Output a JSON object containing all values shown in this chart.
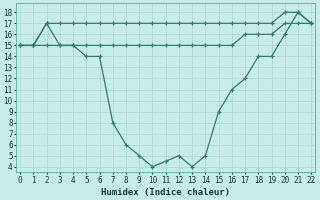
{
  "xlabel": "Humidex (Indice chaleur)",
  "background_color": "#c8ece8",
  "grid_color": "#afd4cf",
  "line_color": "#2e7d6e",
  "x_ticks": [
    0,
    1,
    2,
    3,
    4,
    5,
    6,
    7,
    8,
    9,
    10,
    11,
    12,
    13,
    14,
    15,
    16,
    17,
    18,
    19,
    20,
    21,
    22
  ],
  "y_ticks": [
    4,
    5,
    6,
    7,
    8,
    9,
    10,
    11,
    12,
    13,
    14,
    15,
    16,
    17,
    18
  ],
  "ylim": [
    3.5,
    18.8
  ],
  "xlim": [
    -0.3,
    22.3
  ],
  "line1_x": [
    0,
    1,
    2,
    3,
    4,
    5,
    6,
    7,
    8,
    9,
    10,
    11,
    12,
    13,
    14,
    15,
    16,
    17,
    18,
    19,
    20,
    21,
    22
  ],
  "line1_y": [
    15,
    15,
    17,
    17,
    17,
    17,
    17,
    17,
    17,
    17,
    17,
    17,
    17,
    17,
    17,
    17,
    17,
    17,
    17,
    17,
    18,
    18,
    17
  ],
  "line2_x": [
    0,
    1,
    2,
    3,
    4,
    5,
    6,
    7,
    8,
    9,
    10,
    11,
    12,
    13,
    14,
    15,
    16,
    17,
    18,
    19,
    20,
    21,
    22
  ],
  "line2_y": [
    15,
    15,
    15,
    15,
    15,
    15,
    15,
    15,
    15,
    15,
    15,
    15,
    15,
    15,
    15,
    15,
    15,
    16,
    16,
    16,
    17,
    17,
    17
  ],
  "line3_x": [
    0,
    1,
    2,
    3,
    4,
    5,
    6,
    7,
    8,
    9,
    10,
    11,
    12,
    13,
    14,
    15,
    16,
    17,
    18,
    19,
    20,
    21,
    22
  ],
  "line3_y": [
    15,
    15,
    17,
    15,
    15,
    14,
    14,
    8,
    6,
    5,
    4,
    4.5,
    5,
    4,
    5,
    9,
    11,
    12,
    14,
    14,
    16,
    18,
    17
  ]
}
